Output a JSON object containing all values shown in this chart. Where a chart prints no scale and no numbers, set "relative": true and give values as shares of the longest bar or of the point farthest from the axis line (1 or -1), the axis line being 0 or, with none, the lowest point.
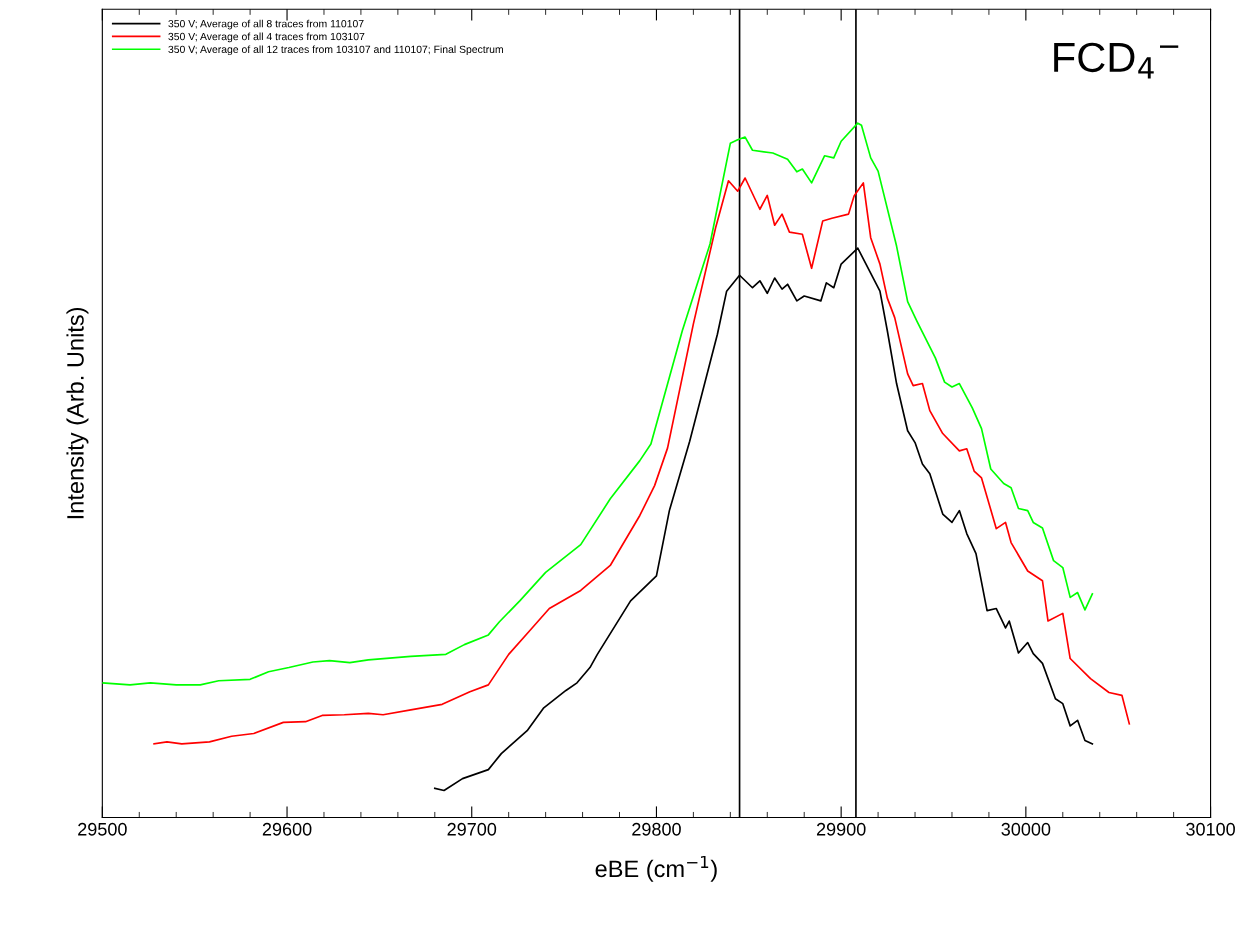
{
  "chart_data": {
    "type": "line",
    "xlabel": "eBE (cm$^{−1}$)",
    "ylabel": "Intensity (Arb. Units)",
    "annotations": [
      "FCD$_{4}$$^{−}$"
    ],
    "relative": true,
    "xlim": [
      29500,
      30100
    ],
    "xticks": [
      29500,
      29600,
      29700,
      29800,
      29900,
      30000,
      30100
    ],
    "grid": false,
    "legend": "top left",
    "marker": "none",
    "line_style": "solid",
    "ref_lines": [
      {
        "axis": "x",
        "value": 29845,
        "color": "#000000"
      },
      {
        "axis": "x",
        "value": 29908,
        "color": "#000000"
      }
    ],
    "series": [
      {
        "name": "350 V; Average of all 8 traces from 110107",
        "color": "#000000",
        "x": [
          29680,
          29685,
          29695,
          29709,
          29716,
          29730,
          29739,
          29751,
          29757,
          29764,
          29768,
          29786,
          29800,
          29807,
          29818,
          29833,
          29838,
          29845,
          29852,
          29856,
          29860,
          29864,
          29868,
          29871,
          29876,
          29880,
          29889,
          29892,
          29896,
          29900,
          29909,
          29921,
          29925,
          29930,
          29936,
          29940,
          29944,
          29948,
          29955,
          29960,
          29964,
          29968,
          29973,
          29979,
          29984,
          29989,
          29991,
          29996,
          30001,
          30004,
          30009,
          30016,
          30020,
          30024,
          30028,
          30032,
          30036
        ],
        "values": [
          0.042,
          0.039,
          0.056,
          0.069,
          0.092,
          0.125,
          0.158,
          0.183,
          0.194,
          0.216,
          0.235,
          0.312,
          0.348,
          0.442,
          0.542,
          0.696,
          0.758,
          0.781,
          0.763,
          0.773,
          0.755,
          0.777,
          0.761,
          0.768,
          0.744,
          0.751,
          0.744,
          0.77,
          0.763,
          0.797,
          0.82,
          0.758,
          0.701,
          0.625,
          0.557,
          0.54,
          0.509,
          0.495,
          0.437,
          0.425,
          0.442,
          0.409,
          0.38,
          0.298,
          0.301,
          0.273,
          0.283,
          0.237,
          0.252,
          0.236,
          0.222,
          0.171,
          0.164,
          0.132,
          0.14,
          0.111,
          0.106
        ]
      },
      {
        "name": "350 V; Average of all 4 traces from 103107",
        "color": "#ff0000",
        "x": [
          29528,
          29535,
          29543,
          29558,
          29570,
          29582,
          29598,
          29610,
          29619,
          29631,
          29644,
          29652,
          29667,
          29684,
          29699,
          29709,
          29720,
          29731,
          29742,
          29759,
          29775,
          29791,
          29799,
          29806,
          29820,
          29832,
          29839,
          29844,
          29848,
          29856,
          29860,
          29864,
          29868,
          29872,
          29879,
          29884,
          29890,
          29895,
          29904,
          29907,
          29912,
          29916,
          29921,
          29925,
          29929,
          29936,
          29939,
          29944,
          29948,
          29955,
          29964,
          29968,
          29972,
          29976,
          29984,
          29989,
          29992,
          30001,
          30009,
          30012,
          30020,
          30024,
          30035,
          30045,
          30052,
          30056
        ],
        "values": [
          0.106,
          0.109,
          0.106,
          0.109,
          0.117,
          0.121,
          0.137,
          0.138,
          0.147,
          0.148,
          0.15,
          0.148,
          0.155,
          0.163,
          0.181,
          0.191,
          0.235,
          0.268,
          0.301,
          0.327,
          0.363,
          0.435,
          0.478,
          0.532,
          0.711,
          0.849,
          0.917,
          0.902,
          0.921,
          0.876,
          0.896,
          0.853,
          0.869,
          0.843,
          0.84,
          0.791,
          0.859,
          0.863,
          0.869,
          0.895,
          0.914,
          0.835,
          0.797,
          0.748,
          0.72,
          0.639,
          0.622,
          0.625,
          0.586,
          0.553,
          0.528,
          0.531,
          0.499,
          0.489,
          0.416,
          0.425,
          0.396,
          0.355,
          0.341,
          0.283,
          0.294,
          0.229,
          0.2,
          0.18,
          0.176,
          0.135
        ]
      },
      {
        "name": "350 V; Average of all 12 traces from 103107 and 110107; Final Spectrum",
        "color": "#00ff00",
        "x": [
          29500,
          29515,
          29526,
          29540,
          29553,
          29563,
          29580,
          29590,
          29601,
          29614,
          29623,
          29634,
          29644,
          29667,
          29686,
          29696,
          29709,
          29715,
          29726,
          29740,
          29759,
          29775,
          29791,
          29797,
          29814,
          29829,
          29840,
          29844,
          29848,
          29852,
          29863,
          29871,
          29876,
          29879,
          29884,
          29891,
          29896,
          29900,
          29909,
          29911,
          29916,
          29920,
          29930,
          29936,
          29941,
          29951,
          29956,
          29960,
          29964,
          29971,
          29976,
          29981,
          29988,
          29992,
          29996,
          30001,
          30004,
          30009,
          30015,
          30020,
          30024,
          30028,
          30032,
          30036
        ],
        "values": [
          0.194,
          0.191,
          0.194,
          0.191,
          0.191,
          0.197,
          0.199,
          0.21,
          0.216,
          0.224,
          0.226,
          0.223,
          0.227,
          0.232,
          0.235,
          0.249,
          0.263,
          0.282,
          0.312,
          0.353,
          0.393,
          0.459,
          0.514,
          0.538,
          0.701,
          0.826,
          0.971,
          0.976,
          0.98,
          0.961,
          0.957,
          0.948,
          0.93,
          0.934,
          0.914,
          0.953,
          0.95,
          0.974,
          1,
          0.997,
          0.95,
          0.931,
          0.823,
          0.743,
          0.715,
          0.662,
          0.627,
          0.62,
          0.625,
          0.59,
          0.56,
          0.502,
          0.481,
          0.475,
          0.445,
          0.442,
          0.425,
          0.417,
          0.37,
          0.36,
          0.317,
          0.324,
          0.299,
          0.322
        ]
      }
    ]
  }
}
